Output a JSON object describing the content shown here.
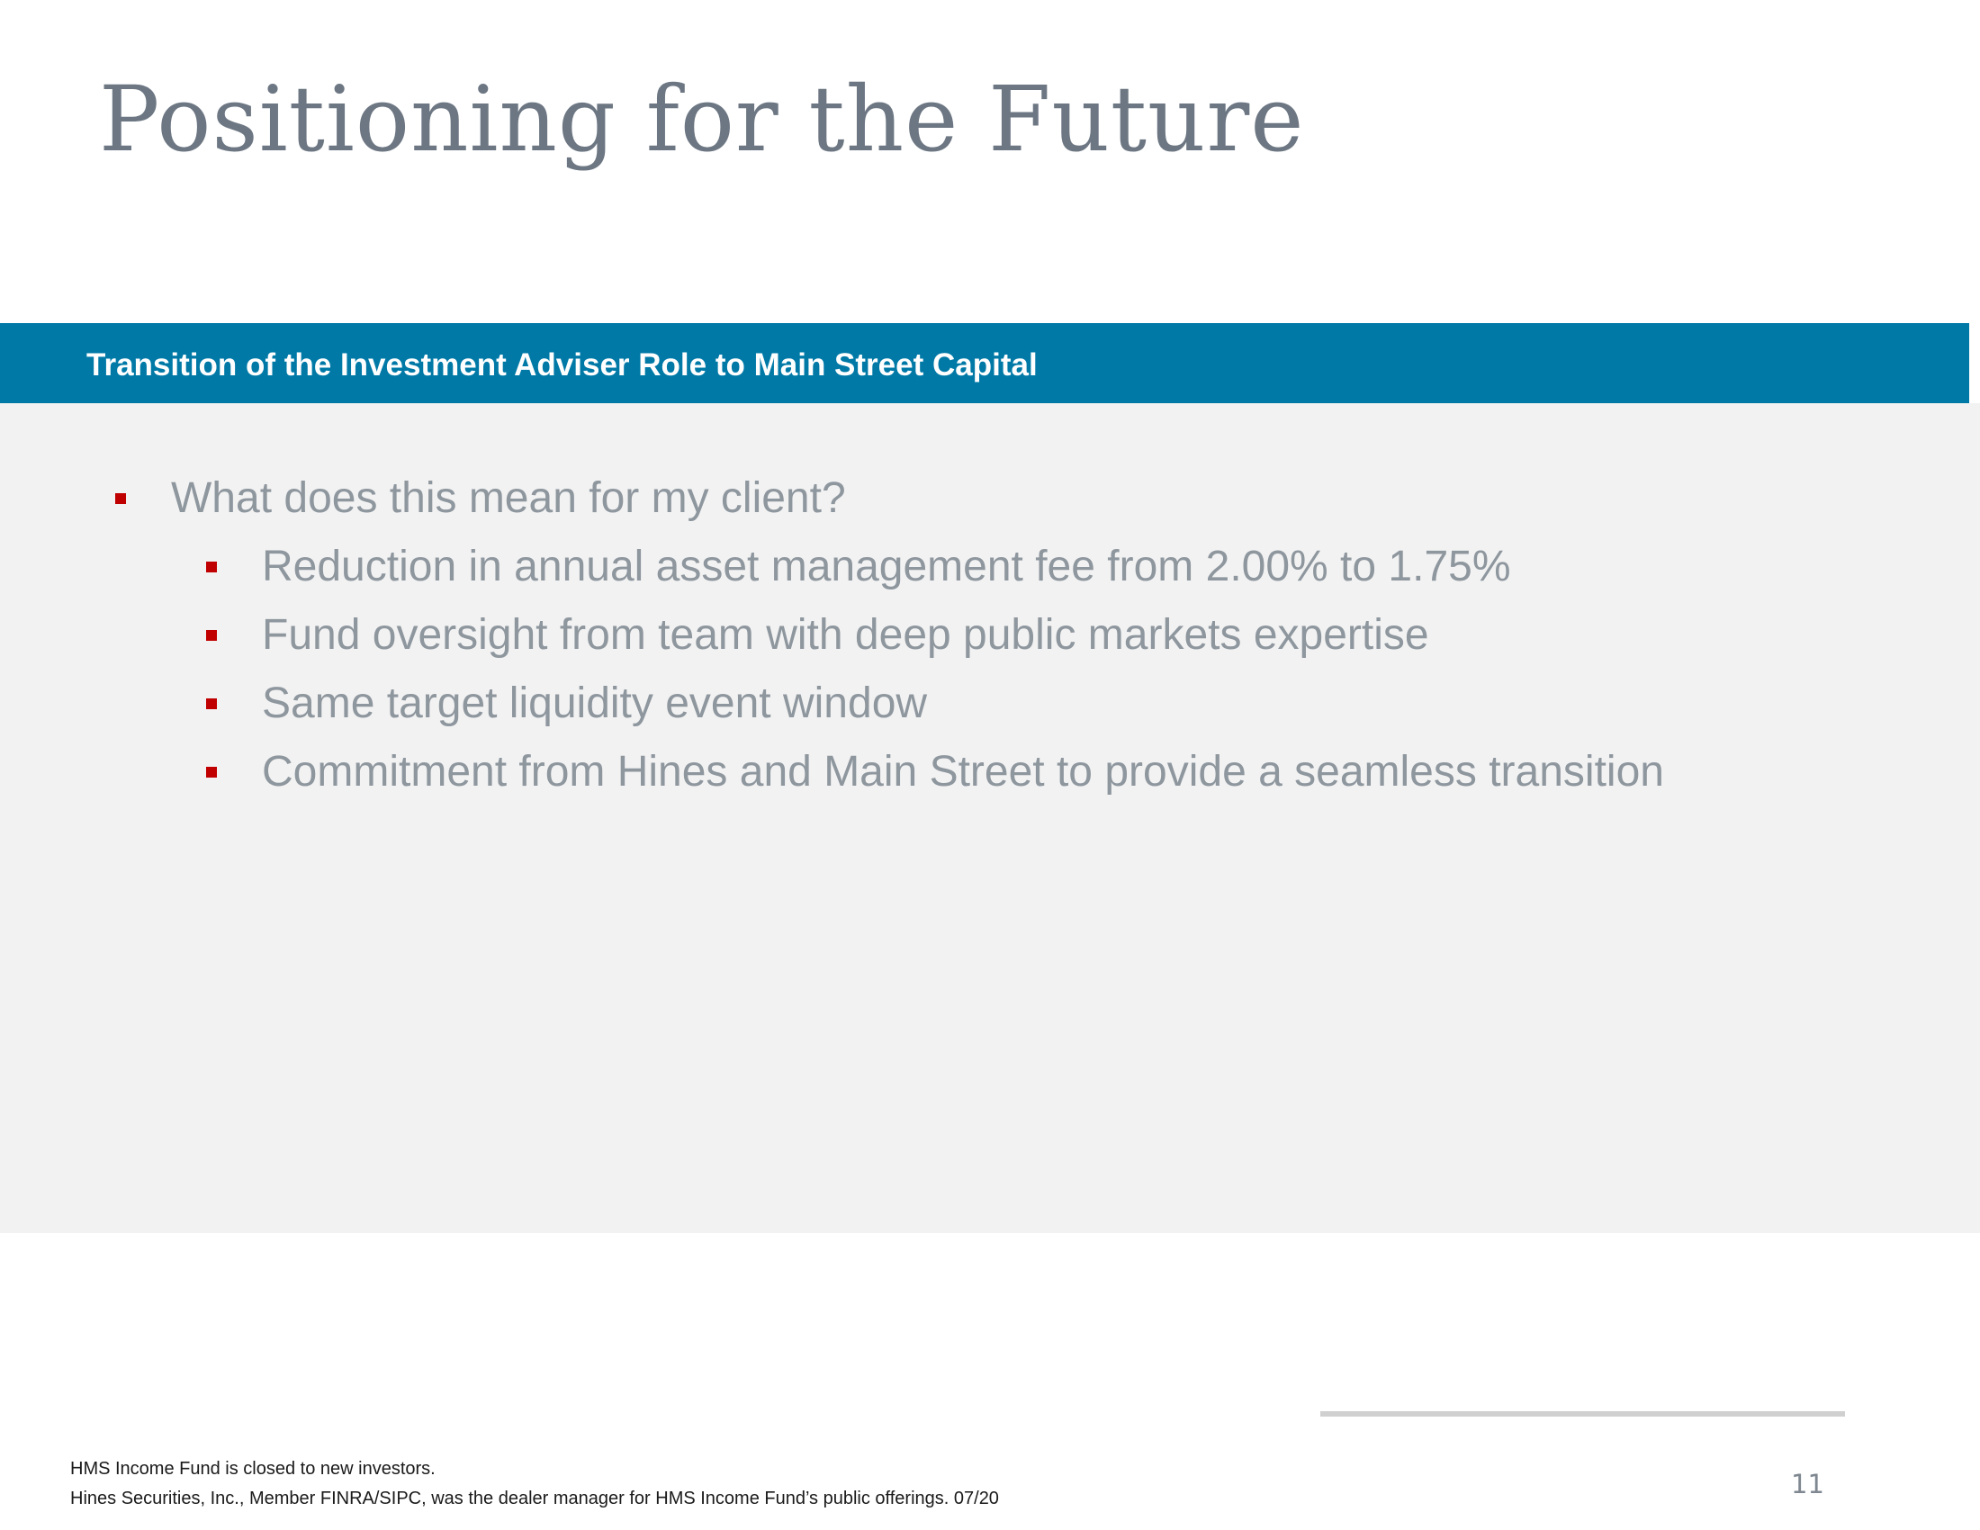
{
  "slide": {
    "title": "Positioning for the Future",
    "section_heading": "Transition of the Investment Adviser Role to Main Street Capital",
    "bullets": [
      {
        "level": 1,
        "text": "What does this mean for my client?"
      },
      {
        "level": 2,
        "text": "Reduction in annual asset management fee from 2.00% to 1.75%"
      },
      {
        "level": 2,
        "text": "Fund oversight from team with deep public markets expertise"
      },
      {
        "level": 2,
        "text": "Same target liquidity event window"
      },
      {
        "level": 2,
        "text": "Commitment from Hines and Main Street to provide a seamless transition"
      }
    ],
    "footer": {
      "line1": "HMS Income Fund is closed to new investors.",
      "line2": "Hines Securities, Inc., Member FINRA/SIPC, was the dealer manager for HMS Income Fund’s public offerings. 07/20"
    },
    "page_number": "11"
  },
  "colors": {
    "title": "#6d7783",
    "banner": "#0079a7",
    "panel": "#f2f2f2",
    "bullet_marker": "#c00000",
    "bullet_text": "#8e969e"
  }
}
